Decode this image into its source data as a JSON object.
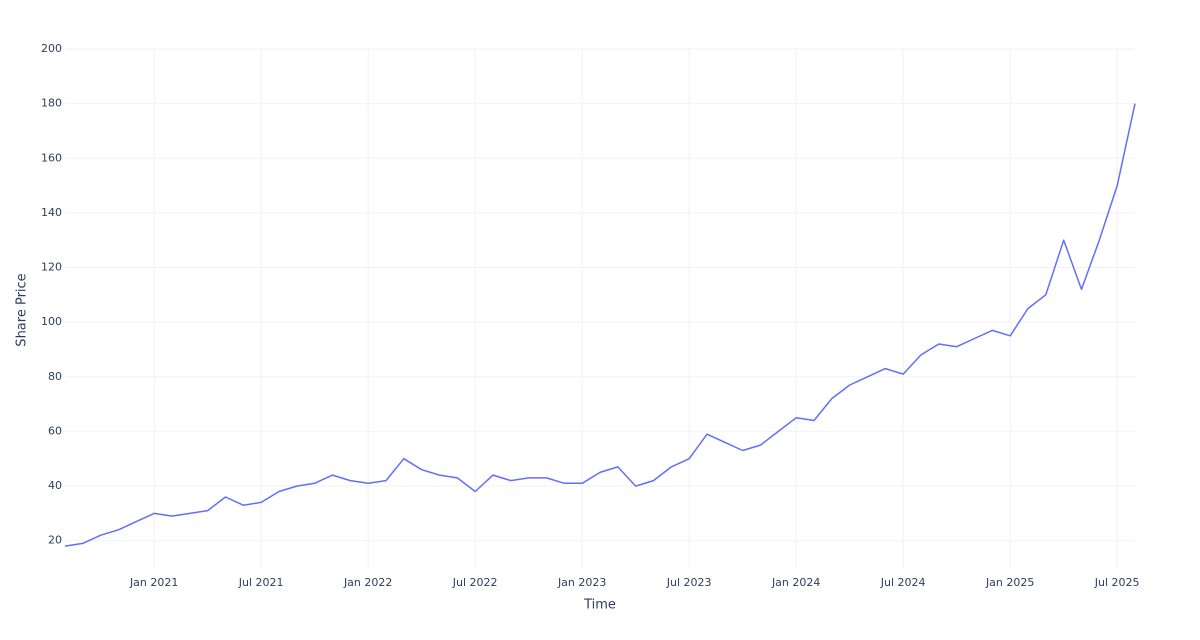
{
  "chart_data": {
    "type": "line",
    "xlabel": "Time",
    "ylabel": "Share Price",
    "x": [
      "2020-08",
      "2020-09",
      "2020-10",
      "2020-11",
      "2020-12",
      "2021-01",
      "2021-02",
      "2021-03",
      "2021-04",
      "2021-05",
      "2021-06",
      "2021-07",
      "2021-08",
      "2021-09",
      "2021-10",
      "2021-11",
      "2021-12",
      "2022-01",
      "2022-02",
      "2022-03",
      "2022-04",
      "2022-05",
      "2022-06",
      "2022-07",
      "2022-08",
      "2022-09",
      "2022-10",
      "2022-11",
      "2022-12",
      "2023-01",
      "2023-02",
      "2023-03",
      "2023-04",
      "2023-05",
      "2023-06",
      "2023-07",
      "2023-08",
      "2023-09",
      "2023-10",
      "2023-11",
      "2023-12",
      "2024-01",
      "2024-02",
      "2024-03",
      "2024-04",
      "2024-05",
      "2024-06",
      "2024-07",
      "2024-08",
      "2024-09",
      "2024-10",
      "2024-11",
      "2024-12",
      "2025-01",
      "2025-02",
      "2025-03",
      "2025-04",
      "2025-05",
      "2025-06",
      "2025-07",
      "2025-08"
    ],
    "series": [
      {
        "name": "Share Price",
        "color": "#636efa",
        "values": [
          18,
          19,
          22,
          24,
          27,
          30,
          29,
          30,
          31,
          36,
          33,
          34,
          38,
          40,
          41,
          44,
          42,
          41,
          42,
          50,
          46,
          44,
          43,
          38,
          44,
          42,
          43,
          43,
          41,
          41,
          45,
          47,
          40,
          42,
          47,
          50,
          59,
          56,
          53,
          55,
          60,
          65,
          64,
          72,
          77,
          80,
          83,
          81,
          88,
          92,
          91,
          94,
          97,
          95,
          105,
          110,
          130,
          112,
          130,
          150,
          180
        ]
      }
    ],
    "xlim": [
      "2020-08",
      "2025-08"
    ],
    "xticks": [
      {
        "value": "2021-01",
        "label": "Jan 2021"
      },
      {
        "value": "2021-07",
        "label": "Jul 2021"
      },
      {
        "value": "2022-01",
        "label": "Jan 2022"
      },
      {
        "value": "2022-07",
        "label": "Jul 2022"
      },
      {
        "value": "2023-01",
        "label": "Jan 2023"
      },
      {
        "value": "2023-07",
        "label": "Jul 2023"
      },
      {
        "value": "2024-01",
        "label": "Jan 2024"
      },
      {
        "value": "2024-07",
        "label": "Jul 2024"
      },
      {
        "value": "2025-01",
        "label": "Jan 2025"
      },
      {
        "value": "2025-07",
        "label": "Jul 2025"
      }
    ],
    "ylim": [
      10,
      200
    ],
    "yticks": [
      20,
      40,
      60,
      80,
      100,
      120,
      140,
      160,
      180,
      200
    ],
    "grid": true
  }
}
